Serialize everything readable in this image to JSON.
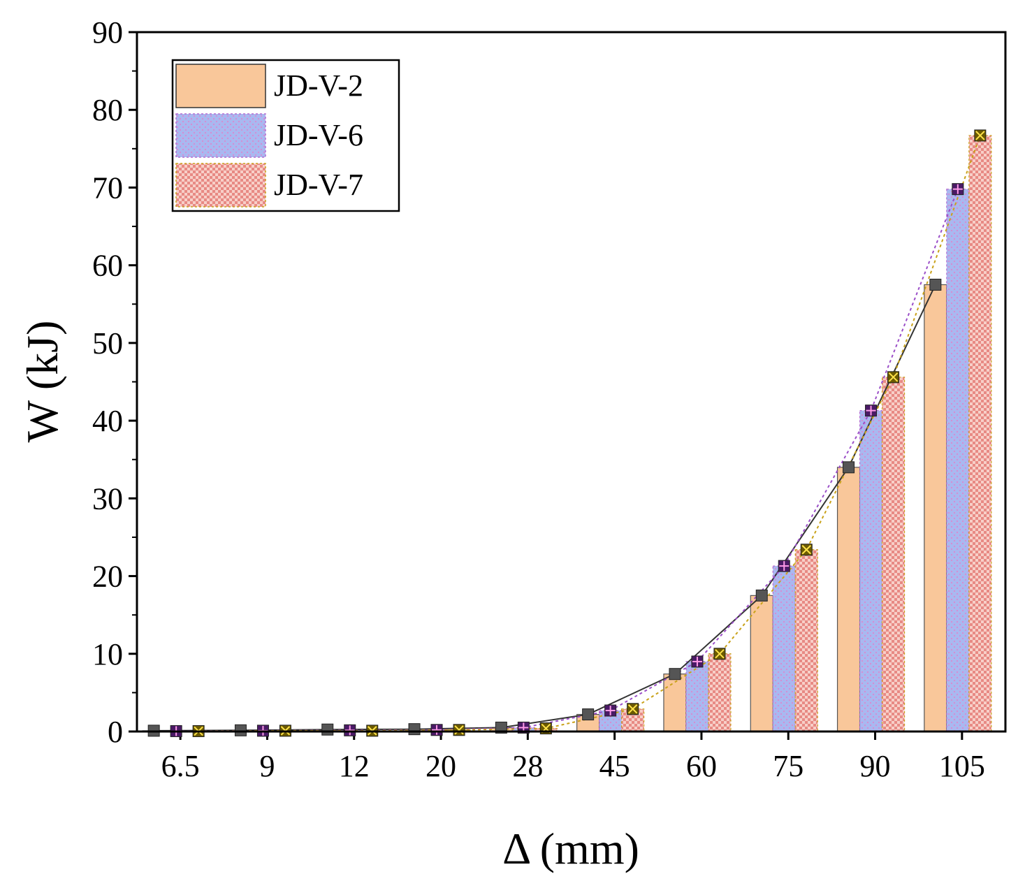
{
  "chart_data": {
    "type": "bar",
    "title": "",
    "xlabel": "Δ (mm)",
    "ylabel": "W (kJ)",
    "ylim": [
      0,
      90
    ],
    "yticks": [
      "0",
      "10",
      "20",
      "30",
      "40",
      "50",
      "60",
      "70",
      "80",
      "90"
    ],
    "categories": [
      "6.5",
      "9",
      "12",
      "20",
      "28",
      "45",
      "60",
      "75",
      "90",
      "105"
    ],
    "legend_position": "top-left",
    "series": [
      {
        "name": "JD-V-2",
        "values": [
          0.1,
          0.15,
          0.25,
          0.3,
          0.5,
          2.2,
          7.4,
          17.5,
          34.0,
          57.5
        ],
        "color": "#f9c79a",
        "marker_color": "#555555",
        "line_style": "solid"
      },
      {
        "name": "JD-V-6",
        "values": [
          0.05,
          0.1,
          0.15,
          0.2,
          0.5,
          2.7,
          9.0,
          21.3,
          41.3,
          69.8
        ],
        "color": "#a9b8f0",
        "marker_color": "#4a1a66",
        "line_style": "dotted"
      },
      {
        "name": "JD-V-7",
        "values": [
          0.05,
          0.1,
          0.1,
          0.2,
          0.4,
          2.9,
          10.0,
          23.4,
          45.6,
          76.7
        ],
        "color": "#f4b3a8",
        "marker_color": "#6b5a00",
        "line_style": "dotted"
      }
    ]
  }
}
